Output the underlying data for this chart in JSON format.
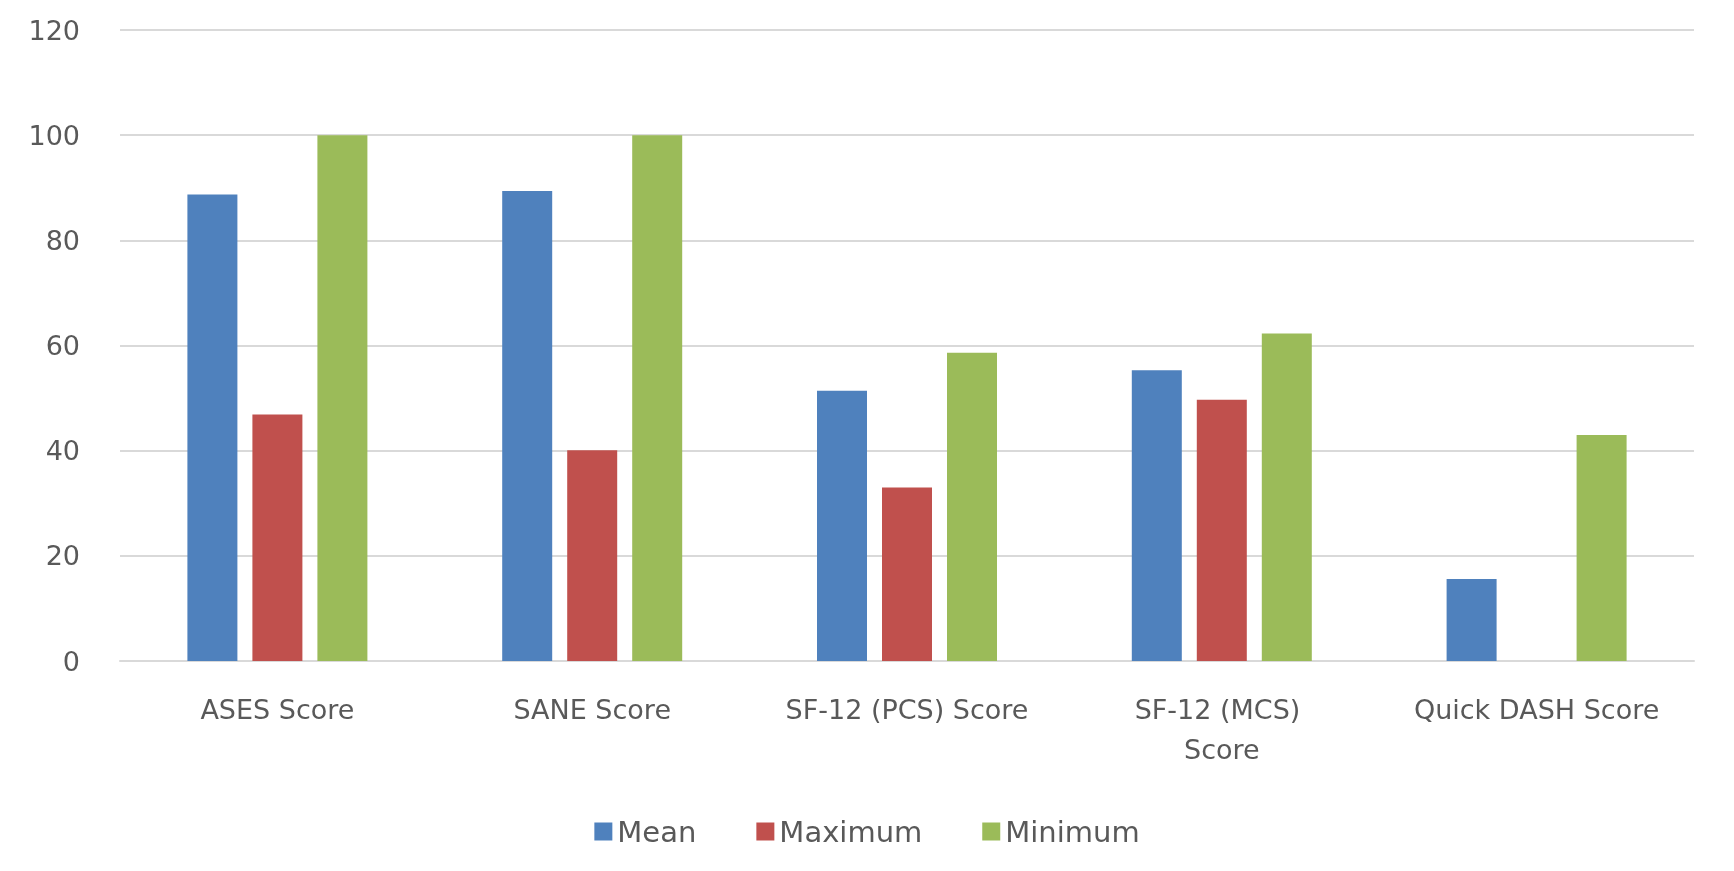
{
  "chart_data": {
    "type": "bar",
    "categories": [
      "ASES Score",
      "SANE Score",
      "SF-12 (PCS) Score",
      "SF-12 (MCS) Score",
      "Quick DASH Score"
    ],
    "series": [
      {
        "name": "Mean",
        "color": "#4f81bd",
        "values": [
          88.7,
          89.4,
          51.4,
          55.3,
          15.6
        ]
      },
      {
        "name": "Maximum",
        "color": "#c0504d",
        "values": [
          46.9,
          40.1,
          33,
          49.7,
          0
        ]
      },
      {
        "name": "Minimum",
        "color": "#9bbb59",
        "values": [
          100,
          100,
          58.6,
          62.3,
          43
        ]
      }
    ],
    "ylim": [
      0,
      120
    ],
    "yticks": [
      0,
      20,
      40,
      60,
      80,
      100,
      120
    ],
    "grid": "y",
    "legend": "bottom"
  }
}
